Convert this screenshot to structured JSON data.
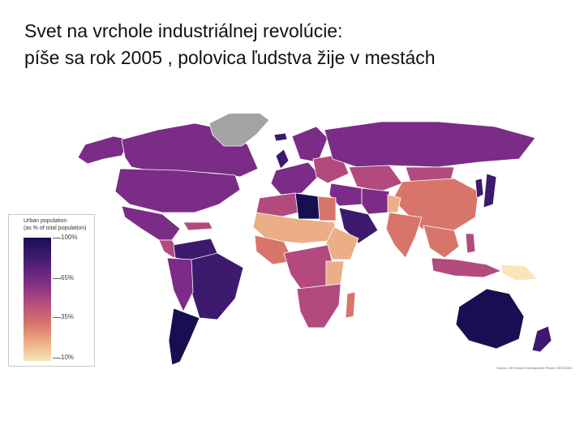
{
  "title": {
    "line1": "Svet na vrchole industriálnej revolúcie:",
    "line2": "píše sa rok 2005 , polovica ľudstva žije v mestách"
  },
  "legend": {
    "title_line1": "Urban population",
    "title_line2": "(as % of total population)",
    "ticks": [
      "100%",
      "65%",
      "35%",
      "10%"
    ]
  },
  "source": "Source: UN Human Development Report 2007/2008",
  "colors": {
    "p100": "#180f52",
    "p85": "#3d1a6e",
    "p65": "#7b2c86",
    "p50": "#b24a7e",
    "p35": "#d8756b",
    "p20": "#ebae86",
    "p10": "#f8e6b8",
    "nodata": "#a3a3a3"
  },
  "regions": [
    {
      "name": "canada",
      "level": "p65"
    },
    {
      "name": "alaska",
      "level": "p65"
    },
    {
      "name": "greenland",
      "level": "nodata"
    },
    {
      "name": "usa",
      "level": "p65"
    },
    {
      "name": "mexico",
      "level": "p65"
    },
    {
      "name": "central-america",
      "level": "p50"
    },
    {
      "name": "caribbean",
      "level": "p50"
    },
    {
      "name": "colombia-venezuela",
      "level": "p85"
    },
    {
      "name": "brazil",
      "level": "p85"
    },
    {
      "name": "andean-region",
      "level": "p65"
    },
    {
      "name": "southern-cone",
      "level": "p100"
    },
    {
      "name": "western-europe",
      "level": "p65"
    },
    {
      "name": "scandinavia",
      "level": "p65"
    },
    {
      "name": "iceland",
      "level": "p85"
    },
    {
      "name": "uk",
      "level": "p85"
    },
    {
      "name": "eastern-europe",
      "level": "p50"
    },
    {
      "name": "russia",
      "level": "p65"
    },
    {
      "name": "central-asia",
      "level": "p50"
    },
    {
      "name": "mongolia",
      "level": "p50"
    },
    {
      "name": "china",
      "level": "p35"
    },
    {
      "name": "japan",
      "level": "p85"
    },
    {
      "name": "korea",
      "level": "p85"
    },
    {
      "name": "middle-east",
      "level": "p65"
    },
    {
      "name": "arabian-peninsula",
      "level": "p85"
    },
    {
      "name": "iran",
      "level": "p65"
    },
    {
      "name": "afghanistan",
      "level": "p20"
    },
    {
      "name": "india",
      "level": "p35"
    },
    {
      "name": "southeast-asia",
      "level": "p35"
    },
    {
      "name": "indonesia",
      "level": "p50"
    },
    {
      "name": "philippines",
      "level": "p50"
    },
    {
      "name": "papua-new-guinea",
      "level": "p10"
    },
    {
      "name": "north-africa-west",
      "level": "p50"
    },
    {
      "name": "libya",
      "level": "p100"
    },
    {
      "name": "egypt",
      "level": "p35"
    },
    {
      "name": "sahel",
      "level": "p20"
    },
    {
      "name": "west-africa",
      "level": "p35"
    },
    {
      "name": "central-africa",
      "level": "p50"
    },
    {
      "name": "horn-of-africa",
      "level": "p20"
    },
    {
      "name": "east-africa",
      "level": "p20"
    },
    {
      "name": "southern-africa",
      "level": "p50"
    },
    {
      "name": "madagascar",
      "level": "p35"
    },
    {
      "name": "australia",
      "level": "p100"
    },
    {
      "name": "new-zealand",
      "level": "p85"
    }
  ]
}
